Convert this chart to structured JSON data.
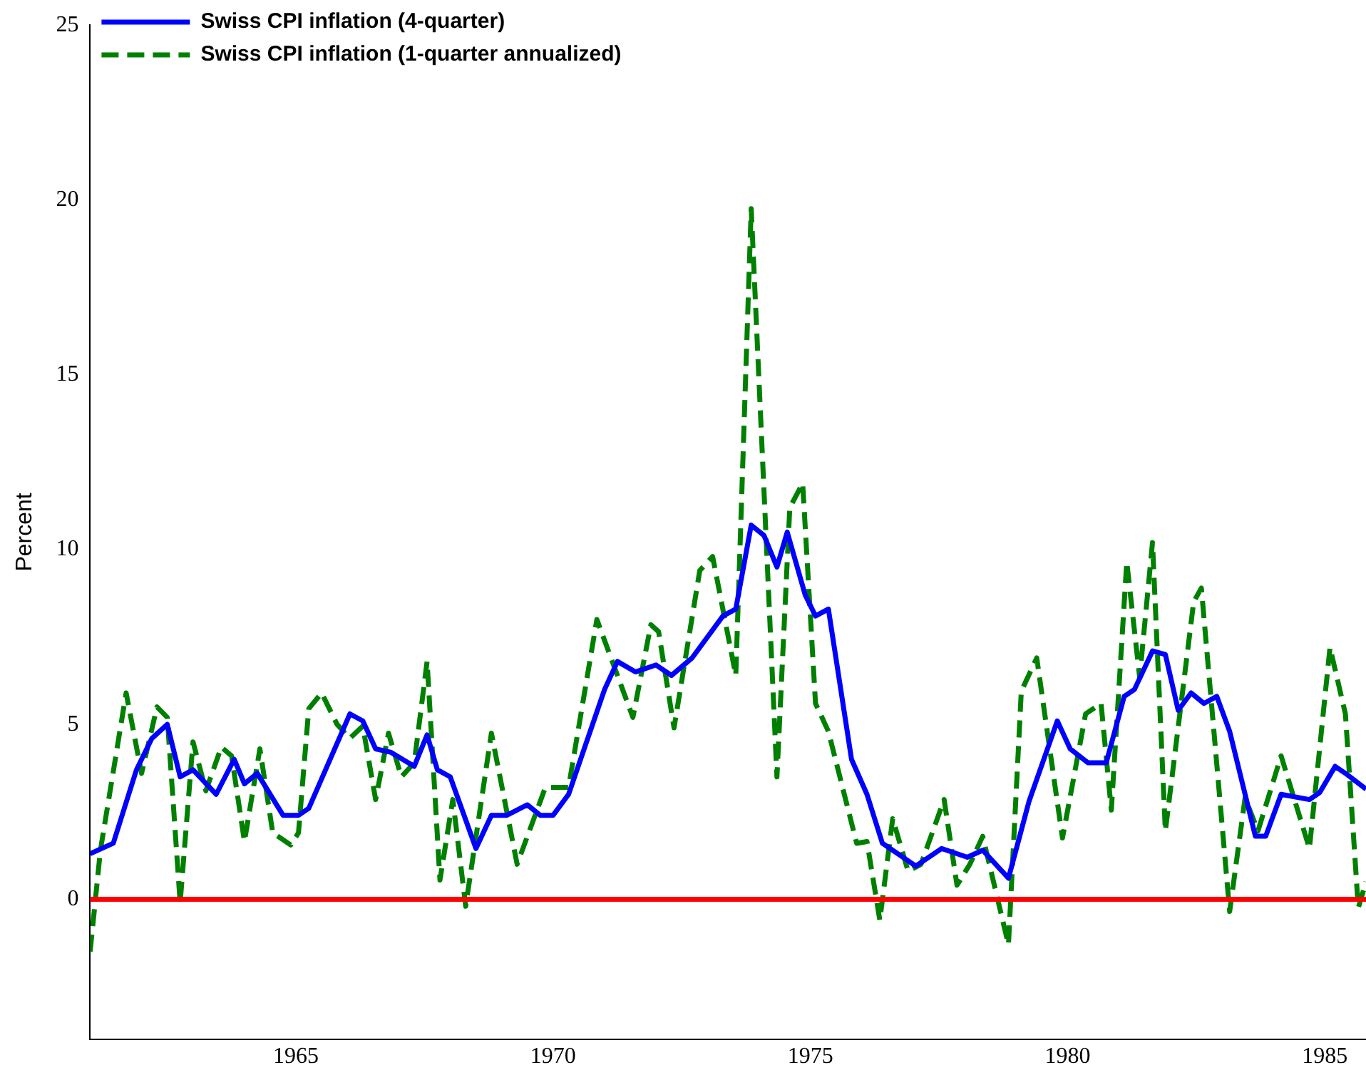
{
  "chart_data": {
    "type": "line",
    "ylabel": "Percent",
    "xlim": [
      1961,
      1985.8
    ],
    "xticks": [
      1965,
      1970,
      1975,
      1980,
      1985
    ],
    "ylim": [
      -4,
      25
    ],
    "yticks": [
      0,
      5,
      10,
      15,
      20,
      25
    ],
    "grid": false,
    "legend": "top left",
    "marker": "none",
    "series": [
      {
        "name": "Swiss CPI inflation (4-quarter)",
        "color": "#0000ff",
        "line_style": "solid",
        "x": [
          1961.0,
          1961.45,
          1961.9,
          1962.2,
          1962.5,
          1962.75,
          1963.0,
          1963.45,
          1963.8,
          1964.0,
          1964.25,
          1964.75,
          1965.05,
          1965.25,
          1966.05,
          1966.3,
          1966.55,
          1966.85,
          1967.3,
          1967.55,
          1967.75,
          1968.0,
          1968.5,
          1968.8,
          1969.1,
          1969.5,
          1969.75,
          1970.0,
          1970.3,
          1970.65,
          1971.0,
          1971.25,
          1971.6,
          1972.0,
          1972.3,
          1972.7,
          1973.3,
          1973.55,
          1973.85,
          1974.1,
          1974.35,
          1974.55,
          1974.9,
          1975.1,
          1975.35,
          1975.8,
          1976.1,
          1976.4,
          1977.05,
          1977.55,
          1978.05,
          1978.35,
          1978.85,
          1979.25,
          1979.8,
          1980.05,
          1980.4,
          1980.75,
          1981.1,
          1981.3,
          1981.65,
          1981.9,
          1982.15,
          1982.4,
          1982.65,
          1982.9,
          1983.15,
          1983.65,
          1983.85,
          1984.15,
          1984.7,
          1984.9,
          1985.2,
          1985.4,
          1985.8
        ],
        "values": [
          1.3,
          1.6,
          3.7,
          4.6,
          5.0,
          3.5,
          3.7,
          3.0,
          4.0,
          3.3,
          3.6,
          2.4,
          2.4,
          2.6,
          5.3,
          5.1,
          4.3,
          4.2,
          3.8,
          4.7,
          3.7,
          3.5,
          1.45,
          2.4,
          2.4,
          2.7,
          2.4,
          2.4,
          3.0,
          4.5,
          6.0,
          6.8,
          6.5,
          6.7,
          6.4,
          6.9,
          8.1,
          8.3,
          10.7,
          10.4,
          9.5,
          10.5,
          8.7,
          8.1,
          8.3,
          4.0,
          3.0,
          1.6,
          0.95,
          1.45,
          1.2,
          1.4,
          0.6,
          2.8,
          5.1,
          4.3,
          3.9,
          3.9,
          5.8,
          6.0,
          7.1,
          7.0,
          5.4,
          5.9,
          5.6,
          5.8,
          4.8,
          1.8,
          1.8,
          3.0,
          2.85,
          3.05,
          3.8,
          3.6,
          3.15
        ]
      },
      {
        "name": "Swiss CPI inflation (1-quarter annualized)",
        "color": "#008000",
        "line_style": "dashed",
        "x": [
          1961.0,
          1961.2,
          1961.7,
          1962.0,
          1962.3,
          1962.5,
          1962.75,
          1963.0,
          1963.25,
          1963.55,
          1963.75,
          1964.0,
          1964.3,
          1964.55,
          1964.9,
          1965.05,
          1965.25,
          1965.5,
          1965.8,
          1966.05,
          1966.3,
          1966.55,
          1966.8,
          1967.05,
          1967.3,
          1967.55,
          1967.8,
          1968.05,
          1968.3,
          1968.8,
          1969.3,
          1969.85,
          1970.3,
          1970.85,
          1971.2,
          1971.55,
          1971.9,
          1972.05,
          1972.35,
          1972.85,
          1973.1,
          1973.55,
          1973.85,
          1974.35,
          1974.6,
          1974.85,
          1975.1,
          1975.35,
          1975.9,
          1976.1,
          1976.35,
          1976.6,
          1976.9,
          1977.15,
          1977.6,
          1977.85,
          1978.1,
          1978.35,
          1978.85,
          1979.1,
          1979.4,
          1979.9,
          1980.35,
          1980.65,
          1980.85,
          1981.15,
          1981.4,
          1981.65,
          1981.9,
          1982.45,
          1982.6,
          1983.15,
          1983.45,
          1983.7,
          1984.15,
          1984.7,
          1985.1,
          1985.4,
          1985.65,
          1985.8
        ],
        "values": [
          -1.5,
          1.4,
          5.9,
          3.6,
          5.5,
          5.2,
          -0.1,
          4.5,
          3.1,
          4.35,
          4.1,
          1.65,
          4.3,
          1.9,
          1.55,
          1.9,
          5.45,
          5.9,
          5.0,
          4.6,
          4.95,
          2.85,
          4.75,
          3.5,
          3.9,
          6.8,
          0.55,
          2.85,
          -0.2,
          4.75,
          1.0,
          3.2,
          3.2,
          8.0,
          6.6,
          5.2,
          7.85,
          7.65,
          4.9,
          9.4,
          9.8,
          6.4,
          19.75,
          3.5,
          11.2,
          11.9,
          5.6,
          4.8,
          1.6,
          1.65,
          -0.6,
          2.3,
          0.8,
          1.0,
          2.85,
          0.4,
          1.0,
          1.8,
          -1.3,
          5.95,
          6.9,
          1.75,
          5.3,
          5.6,
          2.55,
          9.65,
          6.35,
          10.2,
          1.95,
          8.5,
          8.9,
          -0.35,
          2.9,
          1.95,
          4.1,
          1.45,
          7.2,
          5.3,
          -0.25,
          0.5
        ]
      }
    ],
    "ref_lines": [
      {
        "axis": "y",
        "value": 0,
        "color": "#ff0000"
      }
    ]
  }
}
